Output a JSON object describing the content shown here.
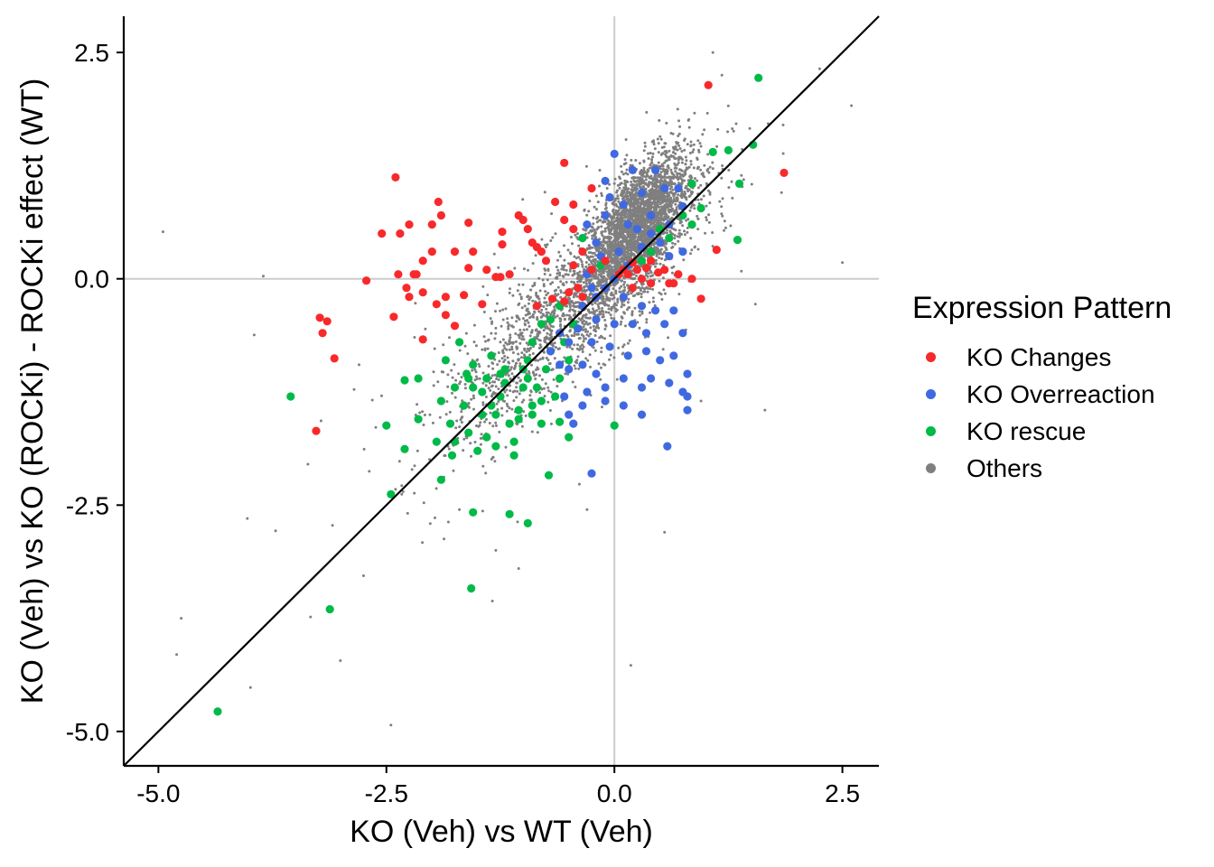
{
  "chart_data": {
    "type": "scatter",
    "xlabel": "KO (Veh) vs WT (Veh)",
    "ylabel": "KO (Veh) vs KO (ROCKi) - ROCKi effect (WT)",
    "xlim": [
      -5.38,
      2.9
    ],
    "ylim": [
      -5.38,
      2.9
    ],
    "x_ticks": [
      -5.0,
      -2.5,
      0.0,
      2.5
    ],
    "x_tick_labels": [
      "-5.0",
      "-2.5",
      "0.0",
      "2.5"
    ],
    "y_ticks": [
      -5.0,
      -2.5,
      0.0,
      2.5
    ],
    "y_tick_labels": [
      "-5.0",
      "-2.5",
      "0.0",
      "2.5"
    ],
    "reference_lines": {
      "x_zero": 0,
      "y_zero": 0,
      "identity": "y = x"
    },
    "grid": false,
    "legend": {
      "title": "Expression Pattern",
      "placement": "right",
      "entries": [
        {
          "label": "KO Changes",
          "color": "#F8292B"
        },
        {
          "label": "KO Overreaction",
          "color": "#4069E1"
        },
        {
          "label": "KO rescue",
          "color": "#00BA48"
        },
        {
          "label": "Others",
          "color": "#7F7F7F"
        }
      ]
    },
    "series": [
      {
        "name": "KO Changes",
        "color": "#F8292B",
        "points": [
          [
            1.03,
            2.14
          ],
          [
            1.86,
            1.17
          ],
          [
            -2.4,
            1.12
          ],
          [
            -2.55,
            0.5
          ],
          [
            -2.35,
            0.5
          ],
          [
            -2.37,
            0.05
          ],
          [
            -2.2,
            0.05
          ],
          [
            -2.25,
            0.6
          ],
          [
            -2.0,
            0.6
          ],
          [
            -1.93,
            0.85
          ],
          [
            -1.9,
            0.7
          ],
          [
            -2.0,
            0.3
          ],
          [
            -2.1,
            0.2
          ],
          [
            -2.17,
            0.05
          ],
          [
            -2.28,
            -0.1
          ],
          [
            -2.25,
            -0.2
          ],
          [
            -2.72,
            -0.02
          ],
          [
            -2.42,
            -0.42
          ],
          [
            -2.1,
            -0.15
          ],
          [
            -1.75,
            0.3
          ],
          [
            -1.6,
            0.12
          ],
          [
            -1.6,
            0.62
          ],
          [
            -1.55,
            0.3
          ],
          [
            -1.4,
            0.1
          ],
          [
            -1.3,
            0.02
          ],
          [
            -1.23,
            0.52
          ],
          [
            -1.05,
            0.7
          ],
          [
            -1.0,
            0.65
          ],
          [
            -0.95,
            0.55
          ],
          [
            -0.9,
            0.4
          ],
          [
            -0.85,
            0.35
          ],
          [
            -0.8,
            0.3
          ],
          [
            -0.75,
            0.2
          ],
          [
            -1.15,
            0.05
          ],
          [
            -1.23,
            0.38
          ],
          [
            -1.25,
            0.02
          ],
          [
            -1.85,
            -0.2
          ],
          [
            -1.95,
            -0.28
          ],
          [
            -1.85,
            -0.4
          ],
          [
            -1.65,
            -0.18
          ],
          [
            -1.45,
            -0.28
          ],
          [
            -1.75,
            -0.52
          ],
          [
            -2.1,
            -0.67
          ],
          [
            -0.65,
            0.85
          ],
          [
            -0.55,
            0.65
          ],
          [
            -0.45,
            0.82
          ],
          [
            -0.45,
            0.55
          ],
          [
            -0.55,
            1.28
          ],
          [
            -0.25,
            1.0
          ],
          [
            -0.35,
            0.3
          ],
          [
            -0.45,
            0.15
          ],
          [
            -0.5,
            -0.15
          ],
          [
            -0.55,
            -0.25
          ],
          [
            -0.35,
            -0.2
          ],
          [
            -0.25,
            0.1
          ],
          [
            -0.1,
            0.2
          ],
          [
            0.1,
            0.1
          ],
          [
            0.15,
            0.05
          ],
          [
            0.25,
            0.1
          ],
          [
            0.3,
            0.0
          ],
          [
            0.4,
            -0.05
          ],
          [
            0.2,
            -0.1
          ],
          [
            0.4,
            0.2
          ],
          [
            0.55,
            0.1
          ],
          [
            0.7,
            0.05
          ],
          [
            0.65,
            -0.05
          ],
          [
            0.85,
            0.0
          ],
          [
            0.95,
            -0.22
          ],
          [
            1.12,
            0.32
          ],
          [
            -3.23,
            -0.43
          ],
          [
            -3.15,
            -0.47
          ],
          [
            -3.2,
            -0.6
          ],
          [
            -3.07,
            -0.88
          ],
          [
            -3.27,
            -1.68
          ],
          [
            -0.68,
            -0.22
          ],
          [
            -0.4,
            -0.1
          ],
          [
            -0.85,
            -0.3
          ],
          [
            0.2,
            0.18
          ],
          [
            0.05,
            0.05
          ],
          [
            0.35,
            0.12
          ],
          [
            0.48,
            0.07
          ],
          [
            0.6,
            -0.05
          ]
        ]
      },
      {
        "name": "KO Overreaction",
        "color": "#4069E1",
        "points": [
          [
            0.0,
            1.38
          ],
          [
            -0.1,
            1.08
          ],
          [
            0.2,
            1.2
          ],
          [
            -0.05,
            0.9
          ],
          [
            0.1,
            0.82
          ],
          [
            0.3,
            0.95
          ],
          [
            0.55,
            1.0
          ],
          [
            0.45,
            1.2
          ],
          [
            0.7,
            1.0
          ],
          [
            0.75,
            0.8
          ],
          [
            0.6,
            0.6
          ],
          [
            0.4,
            0.7
          ],
          [
            0.15,
            0.6
          ],
          [
            -0.1,
            0.7
          ],
          [
            -0.3,
            0.6
          ],
          [
            -0.2,
            0.4
          ],
          [
            -0.15,
            0.25
          ],
          [
            0.05,
            0.3
          ],
          [
            0.3,
            0.35
          ],
          [
            0.5,
            0.4
          ],
          [
            0.6,
            0.25
          ],
          [
            0.75,
            0.3
          ],
          [
            -0.3,
            0.05
          ],
          [
            -0.25,
            -0.1
          ],
          [
            -0.1,
            -0.1
          ],
          [
            0.1,
            -0.2
          ],
          [
            0.3,
            -0.3
          ],
          [
            0.45,
            -0.35
          ],
          [
            0.55,
            -0.5
          ],
          [
            0.2,
            -0.5
          ],
          [
            0.0,
            -0.5
          ],
          [
            -0.2,
            -0.45
          ],
          [
            -0.35,
            -0.3
          ],
          [
            -0.4,
            -0.55
          ],
          [
            -0.25,
            -0.7
          ],
          [
            -0.05,
            -0.75
          ],
          [
            0.15,
            -0.85
          ],
          [
            0.35,
            -0.8
          ],
          [
            0.5,
            -0.9
          ],
          [
            0.65,
            -0.85
          ],
          [
            0.75,
            -0.6
          ],
          [
            0.8,
            -1.05
          ],
          [
            0.4,
            -1.1
          ],
          [
            0.3,
            -1.2
          ],
          [
            0.1,
            -1.1
          ],
          [
            -0.1,
            -1.2
          ],
          [
            -0.2,
            -1.05
          ],
          [
            -0.35,
            -0.95
          ],
          [
            -0.5,
            -1.0
          ],
          [
            -0.6,
            -0.95
          ],
          [
            -0.3,
            -1.25
          ],
          [
            -0.1,
            -1.35
          ],
          [
            0.1,
            -1.4
          ],
          [
            0.3,
            -1.5
          ],
          [
            0.6,
            -1.15
          ],
          [
            0.75,
            -1.25
          ],
          [
            0.8,
            -1.3
          ],
          [
            0.58,
            -1.85
          ],
          [
            0.8,
            -1.45
          ],
          [
            -0.25,
            -2.15
          ],
          [
            -0.5,
            -1.5
          ],
          [
            -0.45,
            -1.6
          ],
          [
            -0.35,
            -1.4
          ],
          [
            -0.55,
            -1.3
          ],
          [
            -0.5,
            -0.7
          ],
          [
            -0.2,
            -0.2
          ],
          [
            0.15,
            0.15
          ],
          [
            0.25,
            0.55
          ],
          [
            0.4,
            0.5
          ],
          [
            -0.6,
            -0.6
          ],
          [
            -0.7,
            -0.8
          ],
          [
            0.0,
            0.0
          ],
          [
            0.35,
            -0.6
          ],
          [
            0.65,
            -0.35
          ]
        ]
      },
      {
        "name": "KO rescue",
        "color": "#00BA48",
        "points": [
          [
            -4.35,
            -4.78
          ],
          [
            -3.12,
            -3.65
          ],
          [
            -3.55,
            -1.3
          ],
          [
            -2.45,
            -2.38
          ],
          [
            -2.5,
            -1.62
          ],
          [
            -2.3,
            -1.88
          ],
          [
            -2.3,
            -1.12
          ],
          [
            -2.15,
            -1.1
          ],
          [
            -2.15,
            -1.55
          ],
          [
            -1.95,
            -1.8
          ],
          [
            -1.9,
            -1.35
          ],
          [
            -1.9,
            -2.22
          ],
          [
            -1.8,
            -1.6
          ],
          [
            -1.75,
            -1.8
          ],
          [
            -1.6,
            -1.7
          ],
          [
            -1.65,
            -1.4
          ],
          [
            -1.55,
            -1.2
          ],
          [
            -1.5,
            -1.9
          ],
          [
            -1.45,
            -1.5
          ],
          [
            -1.4,
            -1.1
          ],
          [
            -1.3,
            -1.5
          ],
          [
            -1.25,
            -1.3
          ],
          [
            -1.2,
            -1.0
          ],
          [
            -1.15,
            -1.6
          ],
          [
            -1.1,
            -1.8
          ],
          [
            -1.05,
            -1.45
          ],
          [
            -1.0,
            -1.2
          ],
          [
            -0.95,
            -0.9
          ],
          [
            -0.9,
            -1.4
          ],
          [
            -0.85,
            -1.2
          ],
          [
            -0.8,
            -1.6
          ],
          [
            -0.75,
            -1.0
          ],
          [
            -0.7,
            -0.8
          ],
          [
            -0.65,
            -1.3
          ],
          [
            -0.6,
            -1.1
          ],
          [
            -0.55,
            -0.7
          ],
          [
            -0.5,
            -0.9
          ],
          [
            -0.45,
            -0.5
          ],
          [
            -1.35,
            -1.4
          ],
          [
            -1.45,
            -1.25
          ],
          [
            -1.62,
            -1.05
          ],
          [
            -1.75,
            -1.2
          ],
          [
            -1.85,
            -0.9
          ],
          [
            -1.7,
            -0.7
          ],
          [
            -1.55,
            -0.95
          ],
          [
            -1.35,
            -0.85
          ],
          [
            -1.2,
            -1.15
          ],
          [
            -1.0,
            -1.0
          ],
          [
            -0.9,
            -0.7
          ],
          [
            -0.8,
            -0.5
          ],
          [
            -0.7,
            -0.45
          ],
          [
            -0.6,
            -0.3
          ],
          [
            -1.55,
            -2.58
          ],
          [
            -1.15,
            -2.6
          ],
          [
            -0.95,
            -2.7
          ],
          [
            -1.57,
            -3.42
          ],
          [
            -0.72,
            -2.17
          ],
          [
            -0.5,
            -1.75
          ],
          [
            -0.6,
            -1.58
          ],
          [
            -1.1,
            -1.95
          ],
          [
            -1.3,
            -1.85
          ],
          [
            -1.78,
            -1.95
          ],
          [
            0.0,
            -1.62
          ],
          [
            1.58,
            2.22
          ],
          [
            1.25,
            1.42
          ],
          [
            1.52,
            1.48
          ],
          [
            1.37,
            1.05
          ],
          [
            1.35,
            0.43
          ],
          [
            1.08,
            1.4
          ],
          [
            0.85,
            1.05
          ],
          [
            0.95,
            0.78
          ],
          [
            0.75,
            0.7
          ],
          [
            0.85,
            0.6
          ],
          [
            0.6,
            0.45
          ],
          [
            0.5,
            0.55
          ],
          [
            0.4,
            0.3
          ],
          [
            0.3,
            0.2
          ],
          [
            -0.35,
            0.45
          ],
          [
            -0.15,
            0.15
          ],
          [
            -0.4,
            -0.55
          ],
          [
            -0.8,
            -1.35
          ],
          [
            -0.9,
            -1.5
          ],
          [
            -1.05,
            -1.55
          ],
          [
            -1.4,
            -1.75
          ],
          [
            -1.25,
            -1.05
          ],
          [
            -0.95,
            -1.1
          ],
          [
            -1.6,
            -1.1
          ]
        ]
      },
      {
        "name": "Others",
        "color": "#7F7F7F",
        "points": "generated: dense cloud of small grey points along y ≈ 0.85·x + 0.05, concentrated near (0.25, 0.6), plus sparse outliers"
      }
    ]
  }
}
